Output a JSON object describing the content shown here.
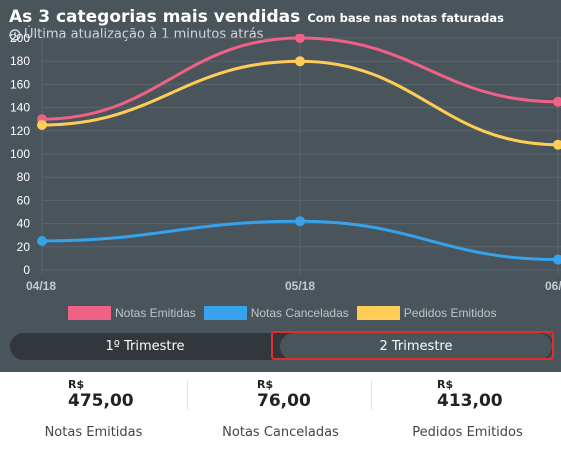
{
  "header": {
    "title": "As 3 categorias mais vendidas",
    "subtitle": "Com base nas notas faturadas",
    "updated": "Última atualização à 1 minutos atrás",
    "clock_icon": "clock-icon"
  },
  "chart_data": {
    "type": "line",
    "x": [
      "04/18",
      "05/18",
      "06/"
    ],
    "ylim": [
      0,
      200
    ],
    "yticks": [
      0,
      20,
      40,
      60,
      80,
      100,
      120,
      140,
      160,
      180,
      200
    ],
    "series": [
      {
        "name": "Notas Emitidas",
        "color": "#f06186",
        "values": [
          130,
          200,
          145
        ]
      },
      {
        "name": "Notas Canceladas",
        "color": "#36a2eb",
        "values": [
          25,
          42,
          9
        ]
      },
      {
        "name": "Pedidos Emitidos",
        "color": "#ffcd56",
        "values": [
          125,
          180,
          108
        ]
      }
    ]
  },
  "tabs": [
    {
      "label": "1º Trimestre",
      "active": false
    },
    {
      "label": "2 Trimestre",
      "active": true
    }
  ],
  "stats": [
    {
      "currency": "R$",
      "value": "475,00",
      "label": "Notas Emitidas"
    },
    {
      "currency": "R$",
      "value": "76,00",
      "label": "Notas Canceladas"
    },
    {
      "currency": "R$",
      "value": "413,00",
      "label": "Pedidos Emitidos"
    }
  ]
}
